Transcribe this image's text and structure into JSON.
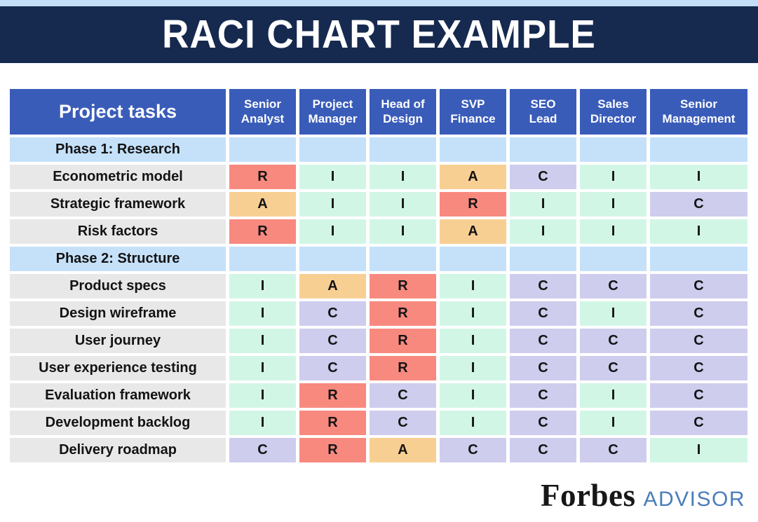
{
  "banner": {
    "title": "RACI CHART EXAMPLE"
  },
  "colors": {
    "top_strip": "#c3dff8",
    "banner_bg": "#16294f",
    "header_bg": "#3a5cb9",
    "phase_row_bg": "#c5e1fa",
    "task_label_bg": "#e8e8e8",
    "advisor_text": "#4a7dba",
    "legend": {
      "R": "#f8897f",
      "A": "#f8cf93",
      "C": "#cecdee",
      "I": "#d2f6e6"
    }
  },
  "chart_data": {
    "type": "table",
    "title": "RACI CHART EXAMPLE",
    "task_column_header": "Project tasks",
    "columns": [
      "Senior\nAnalyst",
      "Project\nManager",
      "Head of\nDesign",
      "SVP\nFinance",
      "SEO\nLead",
      "Sales\nDirector",
      "Senior\nManagement"
    ],
    "rows": [
      {
        "type": "phase",
        "label": "Phase 1: Research",
        "values": [
          "",
          "",
          "",
          "",
          "",
          "",
          ""
        ]
      },
      {
        "type": "task",
        "label": "Econometric model",
        "values": [
          "R",
          "I",
          "I",
          "A",
          "C",
          "I",
          "I"
        ]
      },
      {
        "type": "task",
        "label": "Strategic framework",
        "values": [
          "A",
          "I",
          "I",
          "R",
          "I",
          "I",
          "C"
        ]
      },
      {
        "type": "task",
        "label": "Risk factors",
        "values": [
          "R",
          "I",
          "I",
          "A",
          "I",
          "I",
          "I"
        ]
      },
      {
        "type": "phase",
        "label": "Phase 2: Structure",
        "values": [
          "",
          "",
          "",
          "",
          "",
          "",
          ""
        ]
      },
      {
        "type": "task",
        "label": "Product specs",
        "values": [
          "I",
          "A",
          "R",
          "I",
          "C",
          "C",
          "C"
        ]
      },
      {
        "type": "task",
        "label": "Design wireframe",
        "values": [
          "I",
          "C",
          "R",
          "I",
          "C",
          "I",
          "C"
        ]
      },
      {
        "type": "task",
        "label": "User journey",
        "values": [
          "I",
          "C",
          "R",
          "I",
          "C",
          "C",
          "C"
        ]
      },
      {
        "type": "task",
        "label": "User experience testing",
        "values": [
          "I",
          "C",
          "R",
          "I",
          "C",
          "C",
          "C"
        ]
      },
      {
        "type": "task",
        "label": "Evaluation framework",
        "values": [
          "I",
          "R",
          "C",
          "I",
          "C",
          "I",
          "C"
        ]
      },
      {
        "type": "task",
        "label": "Development backlog",
        "values": [
          "I",
          "R",
          "C",
          "I",
          "C",
          "I",
          "C"
        ]
      },
      {
        "type": "task",
        "label": "Delivery roadmap",
        "values": [
          "C",
          "R",
          "A",
          "C",
          "C",
          "C",
          "I"
        ]
      }
    ]
  },
  "footer": {
    "brand": "Forbes",
    "suffix": "ADVISOR"
  }
}
